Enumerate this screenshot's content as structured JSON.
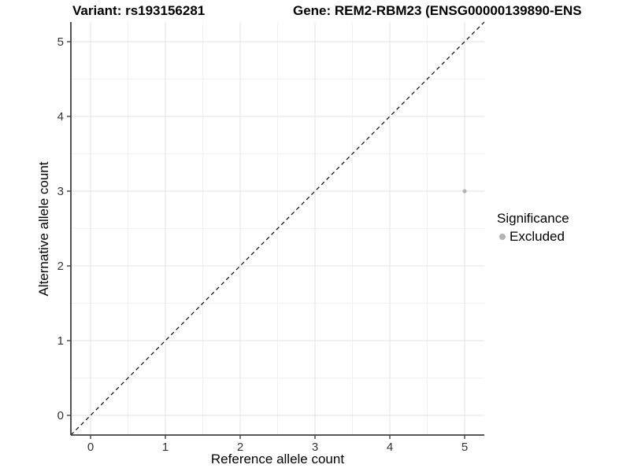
{
  "titles": {
    "variant": "Variant: rs193156281",
    "gene": "Gene: REM2-RBM23 (ENSG00000139890-ENS"
  },
  "chart_data": {
    "type": "scatter",
    "xlabel": "Reference allele count",
    "ylabel": "Alternative allele count",
    "x_ticks": [
      0,
      1,
      2,
      3,
      4,
      5
    ],
    "y_ticks": [
      0,
      1,
      2,
      3,
      4,
      5
    ],
    "xlim": [
      -0.263,
      5.263
    ],
    "ylim": [
      -0.263,
      5.263
    ],
    "grid": "major-and-minor",
    "minor_grid_step": 0.5,
    "reference_line": {
      "kind": "identity",
      "slope": 1,
      "intercept": 0,
      "style": "dashed",
      "color": "#000000"
    },
    "series": [
      {
        "name": "Excluded",
        "color": "#b3b3b3",
        "points": [
          {
            "x": 5,
            "y": 3
          }
        ]
      }
    ],
    "legend": {
      "title": "Significance",
      "position": "right",
      "entries": [
        {
          "label": "Excluded",
          "color": "#b3b3b3"
        }
      ]
    }
  },
  "colors": {
    "background": "#ffffff",
    "grid_major": "#e3e3e3",
    "grid_minor": "#f1f1f1",
    "axis_line": "#404040",
    "tick_text": "#333333",
    "point": "#b3b3b3",
    "reference_line": "#000000"
  }
}
